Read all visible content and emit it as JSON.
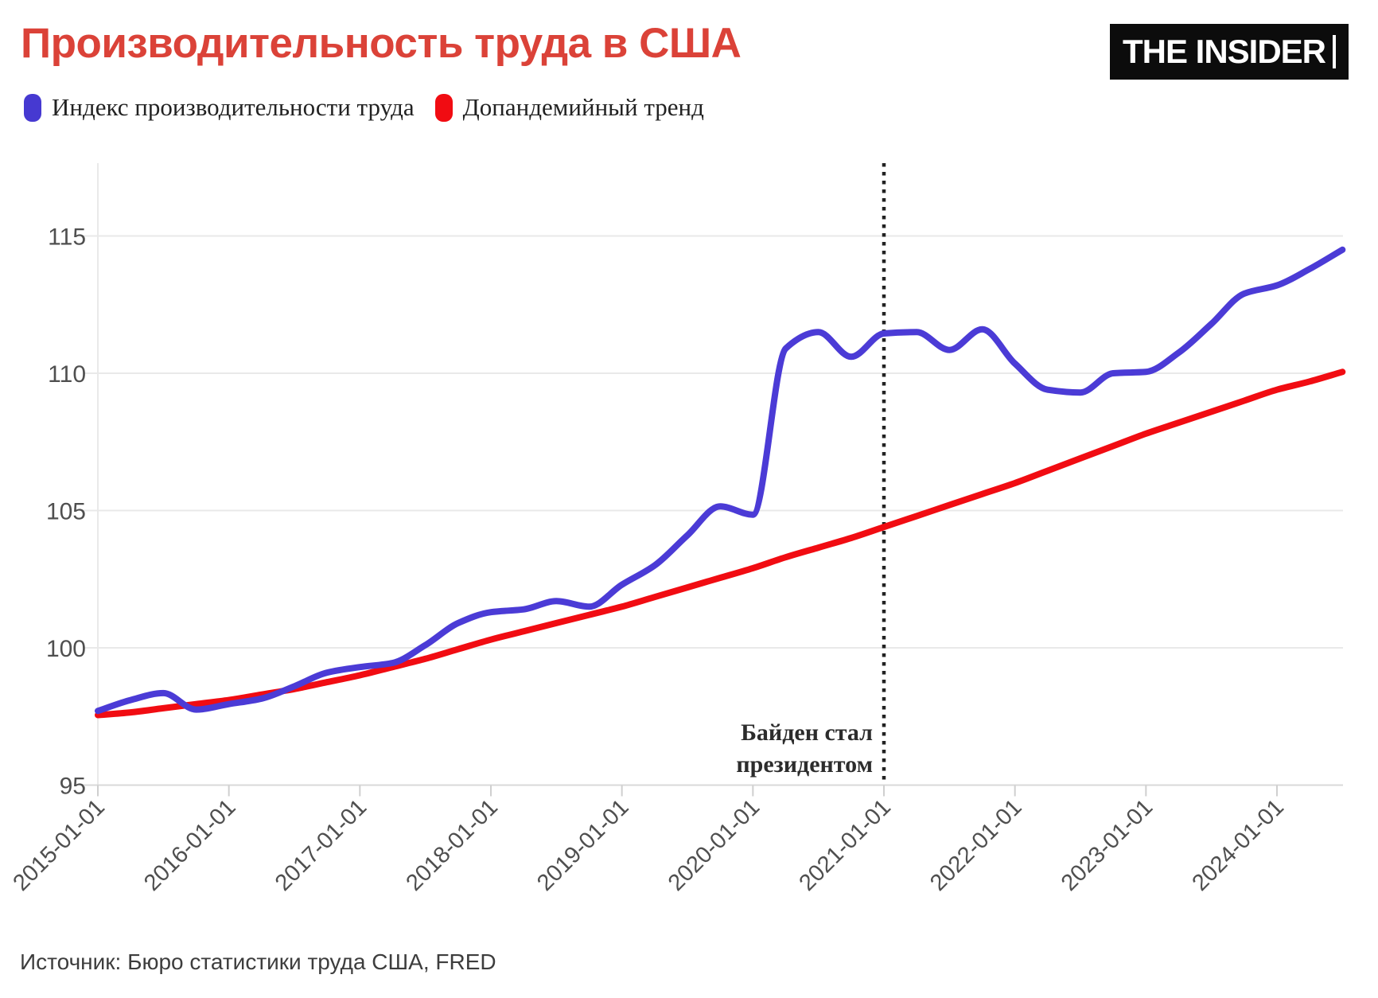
{
  "title": "Производительность труда в США",
  "logo": {
    "text": "THE INSIDER"
  },
  "legend": {
    "items": [
      {
        "label": "Индекс производительности труда",
        "color": "#4639D1"
      },
      {
        "label": "Допандемийный тренд",
        "color": "#F10C12"
      }
    ]
  },
  "annotation": {
    "line1": "Байден стал",
    "line2": "президентом"
  },
  "source": "Источник: Бюро статистики труда США, FRED",
  "colors": {
    "title": "#DB4238",
    "productivity_line": "#4B3BD6",
    "trend_line": "#F10C12",
    "grid": "#e9e9e9",
    "axis": "#d9d9d9",
    "tick": "#cfcfcf",
    "tick_label": "#4f4f4f",
    "vline": "#222222"
  },
  "chart_data": {
    "type": "line",
    "title": "Производительность труда в США",
    "x_start": "2015-01-01",
    "x_step_months": 3,
    "x_tick_labels": [
      "2015-01-01",
      "2016-01-01",
      "2017-01-01",
      "2018-01-01",
      "2019-01-01",
      "2020-01-01",
      "2021-01-01",
      "2022-01-01",
      "2023-01-01",
      "2024-01-01"
    ],
    "y_ticks": [
      95,
      100,
      105,
      110,
      115
    ],
    "ylim": [
      95,
      117.6
    ],
    "xlim_years": [
      2015.0,
      2024.58
    ],
    "grid": "horizontal",
    "legend_position": "top-left",
    "series": [
      {
        "name": "Индекс производительности труда",
        "color": "#4B3BD6",
        "values": [
          97.7,
          98.1,
          98.35,
          97.75,
          97.95,
          98.15,
          98.6,
          99.1,
          99.3,
          99.45,
          100.1,
          100.9,
          101.3,
          101.4,
          101.7,
          101.5,
          102.3,
          103.0,
          104.1,
          105.15,
          104.85,
          110.9,
          111.5,
          110.6,
          111.45,
          111.5,
          110.85,
          111.6,
          110.35,
          109.4,
          109.3,
          110.0,
          110.05,
          110.75,
          111.8,
          112.9,
          113.2,
          113.8,
          114.5
        ]
      },
      {
        "name": "Допандемийный тренд",
        "color": "#F10C12",
        "values": [
          97.55,
          97.65,
          97.8,
          97.95,
          98.1,
          98.3,
          98.5,
          98.75,
          99.0,
          99.3,
          99.6,
          99.95,
          100.3,
          100.6,
          100.9,
          101.2,
          101.5,
          101.85,
          102.2,
          102.55,
          102.9,
          103.3,
          103.65,
          104.0,
          104.4,
          104.8,
          105.2,
          105.6,
          106.0,
          106.45,
          106.9,
          107.35,
          107.8,
          108.2,
          108.6,
          109.0,
          109.4,
          109.7,
          110.05
        ]
      }
    ],
    "vline": {
      "x": "2021-01-01",
      "style": "dotted",
      "color": "#222222",
      "label": "Байден стал президентом"
    }
  }
}
